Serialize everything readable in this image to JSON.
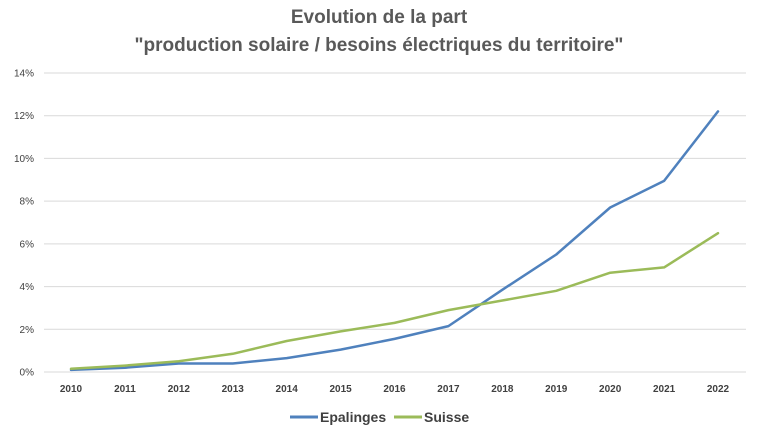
{
  "chart_data": {
    "type": "line",
    "title": [
      "Evolution de la part",
      "\"production solaire / besoins électriques du territoire\""
    ],
    "xlabel": "",
    "ylabel": "",
    "categories": [
      "2010",
      "2011",
      "2012",
      "2013",
      "2014",
      "2015",
      "2016",
      "2017",
      "2018",
      "2019",
      "2020",
      "2021",
      "2022"
    ],
    "ylim": [
      0,
      14
    ],
    "yticks": [
      0,
      2,
      4,
      6,
      8,
      10,
      12,
      14
    ],
    "ytick_labels": [
      "0%",
      "2%",
      "4%",
      "6%",
      "8%",
      "10%",
      "12%",
      "14%"
    ],
    "grid": true,
    "legend_position": "bottom",
    "series": [
      {
        "name": "Epalinges",
        "color": "#4f81bd",
        "values": [
          0.1,
          0.2,
          0.4,
          0.4,
          0.65,
          1.05,
          1.55,
          2.15,
          3.85,
          5.5,
          7.7,
          8.95,
          12.2
        ]
      },
      {
        "name": "Suisse",
        "color": "#9bbb59",
        "values": [
          0.15,
          0.3,
          0.5,
          0.85,
          1.45,
          1.9,
          2.3,
          2.9,
          3.35,
          3.8,
          4.65,
          4.9,
          6.5
        ]
      }
    ]
  }
}
